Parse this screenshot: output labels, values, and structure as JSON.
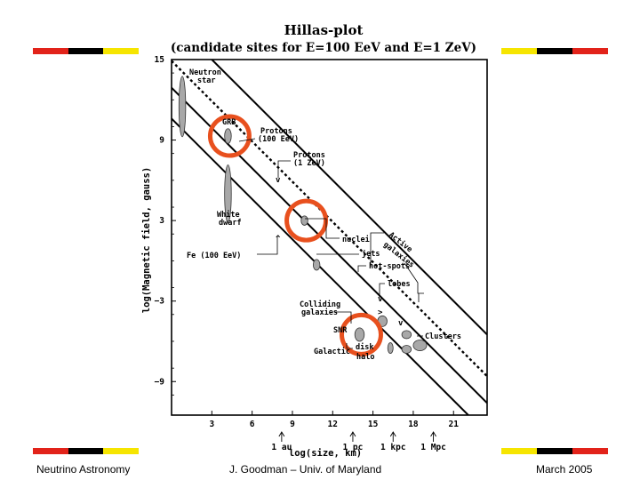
{
  "slide": {
    "footer_left": "Neutrino Astronomy",
    "footer_center": "J. Goodman – Univ. of Maryland",
    "footer_right": "March 2005",
    "flag_colors": [
      "#e2231a",
      "#000000",
      "#f6e500"
    ],
    "highlight_color": "#e8501e"
  },
  "chart_data": {
    "type": "scatter",
    "title": "Hillas-plot",
    "subtitle": "(candidate sites for E=100 EeV and E=1 ZeV)",
    "xlabel": "log(size, km)",
    "ylabel": "log(Magnetic field, gauss)",
    "xlim": [
      0,
      23.5
    ],
    "ylim": [
      -11.5,
      15
    ],
    "x_ticks": [
      3,
      6,
      9,
      12,
      15,
      18,
      21
    ],
    "y_ticks": [
      15,
      9,
      3,
      -3,
      -9
    ],
    "y_tick_labels": [
      "15",
      "9",
      "3",
      "−3",
      "−9"
    ],
    "x_unit_markers": [
      {
        "label": "1 au",
        "x": 8.2
      },
      {
        "label": "1 pc",
        "x": 13.5
      },
      {
        "label": "1 kpc",
        "x": 16.5
      },
      {
        "label": "1 Mpc",
        "x": 19.5
      }
    ],
    "lines": [
      {
        "name": "Protons (100 EeV)",
        "style": "solid",
        "points": [
          [
            0,
            12.9
          ],
          [
            23.5,
            -10.6
          ]
        ]
      },
      {
        "name": "Protons (1 ZeV)",
        "style": "dotted",
        "points": [
          [
            0,
            14.9
          ],
          [
            23.5,
            -8.6
          ]
        ]
      },
      {
        "name": "Fe (100 EeV)",
        "style": "solid",
        "points": [
          [
            0,
            10.6
          ],
          [
            23.5,
            -12.9
          ]
        ]
      },
      {
        "name": "",
        "style": "solid",
        "points": [
          [
            3.0,
            15
          ],
          [
            23.5,
            -5.5
          ]
        ]
      }
    ],
    "regions": [
      {
        "label": "Neutron star",
        "x": 0.8,
        "y": 11.5,
        "width": 0.5,
        "height": 4.5,
        "circled": false
      },
      {
        "label": "GRB",
        "x": 4.2,
        "y": 9.3,
        "width": 0.5,
        "height": 1.1,
        "circled": true
      },
      {
        "label": "White dwarf",
        "x": 4.2,
        "y": 5.0,
        "width": 0.5,
        "height": 4.3,
        "circled": false
      },
      {
        "label": "nuclei",
        "x": 9.9,
        "y": 3.0,
        "width": 0.5,
        "height": 0.7,
        "circled": true
      },
      {
        "label": "jets",
        "x": 10.8,
        "y": -0.3,
        "width": 0.5,
        "height": 0.8,
        "circled": false
      },
      {
        "label": "hot-spots",
        "x": 15.7,
        "y": -4.5,
        "width": 0.7,
        "height": 0.8,
        "circled": false
      },
      {
        "label": "lobes",
        "x": 17.5,
        "y": -5.5,
        "width": 0.7,
        "height": 0.6,
        "circled": false
      },
      {
        "label": "Colliding galaxies",
        "x": 14.0,
        "y": -5.5,
        "width": 0.7,
        "height": 1.0,
        "circled": true
      },
      {
        "label": "disk",
        "x": 16.3,
        "y": -6.5,
        "width": 0.4,
        "height": 0.8,
        "circled": false
      },
      {
        "label": "halo",
        "x": 17.5,
        "y": -6.6,
        "width": 0.7,
        "height": 0.6,
        "circled": false
      },
      {
        "label": "Clusters",
        "x": 18.5,
        "y": -6.3,
        "width": 1.0,
        "height": 0.8,
        "circled": false
      }
    ],
    "annotations": [
      "Neutron star",
      "GRB",
      "Protons (100 EeV)",
      "Protons (1 ZeV)",
      "White dwarf",
      "nuclei",
      "Active galaxies",
      "Fe (100 EeV)",
      "jets",
      "hot-spots",
      "lobes",
      "Colliding galaxies",
      "SNR",
      "Clusters",
      "disk",
      "halo",
      "Galactic"
    ],
    "grid": false
  }
}
